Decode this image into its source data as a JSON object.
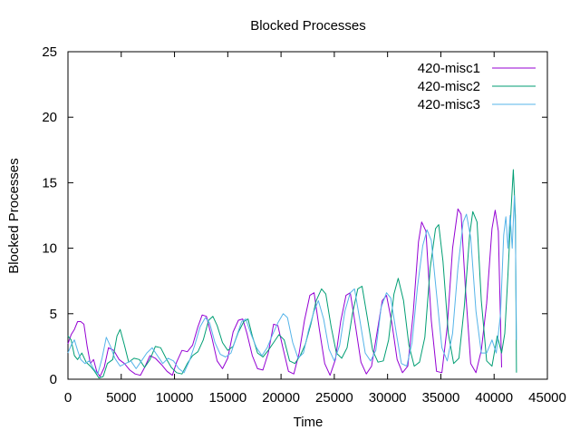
{
  "chart_data": {
    "type": "line",
    "title": "Blocked Processes",
    "xlabel": "Time",
    "ylabel": "Blocked Processes",
    "xlim": [
      0,
      45000
    ],
    "ylim": [
      0,
      25
    ],
    "xticks": [
      0,
      5000,
      10000,
      15000,
      20000,
      25000,
      30000,
      35000,
      40000,
      45000
    ],
    "yticks": [
      0,
      5,
      10,
      15,
      20,
      25
    ],
    "xtick_labels": [
      "0",
      "5000",
      "10000",
      "15000",
      "20000",
      "25000",
      "30000",
      "35000",
      "40000",
      "45000"
    ],
    "ytick_labels": [
      "0",
      "5",
      "10",
      "15",
      "20",
      "25"
    ],
    "grid": false,
    "legend_position": "top-right",
    "series": [
      {
        "name": "420-misc1",
        "color": "#9400d3",
        "points": [
          [
            0,
            2.7
          ],
          [
            300,
            3.4
          ],
          [
            600,
            3.8
          ],
          [
            900,
            4.4
          ],
          [
            1200,
            4.4
          ],
          [
            1500,
            4.2
          ],
          [
            1800,
            2.5
          ],
          [
            2100,
            1.2
          ],
          [
            2400,
            1.5
          ],
          [
            2700,
            0.6
          ],
          [
            3000,
            0.2
          ],
          [
            3400,
            0.9
          ],
          [
            3800,
            2.4
          ],
          [
            4300,
            2.2
          ],
          [
            4800,
            1.5
          ],
          [
            5300,
            1.2
          ],
          [
            5800,
            0.7
          ],
          [
            6300,
            0.4
          ],
          [
            6800,
            0.3
          ],
          [
            7200,
            0.9
          ],
          [
            7700,
            1.8
          ],
          [
            8200,
            1.6
          ],
          [
            8800,
            1.1
          ],
          [
            9300,
            0.6
          ],
          [
            9800,
            0.3
          ],
          [
            10200,
            1.3
          ],
          [
            10700,
            2.2
          ],
          [
            11200,
            2.1
          ],
          [
            11700,
            2.6
          ],
          [
            12200,
            4.0
          ],
          [
            12600,
            4.9
          ],
          [
            13000,
            4.8
          ],
          [
            13500,
            3.2
          ],
          [
            14000,
            1.4
          ],
          [
            14500,
            0.8
          ],
          [
            15000,
            1.6
          ],
          [
            15500,
            3.6
          ],
          [
            16000,
            4.5
          ],
          [
            16400,
            4.6
          ],
          [
            16800,
            3.5
          ],
          [
            17300,
            1.8
          ],
          [
            17800,
            0.8
          ],
          [
            18300,
            0.7
          ],
          [
            18800,
            2.0
          ],
          [
            19300,
            4.2
          ],
          [
            19700,
            4.1
          ],
          [
            20200,
            2.3
          ],
          [
            20700,
            0.6
          ],
          [
            21200,
            0.4
          ],
          [
            21700,
            2.0
          ],
          [
            22200,
            4.5
          ],
          [
            22700,
            6.4
          ],
          [
            23100,
            6.6
          ],
          [
            23600,
            3.8
          ],
          [
            24100,
            1.2
          ],
          [
            24600,
            0.3
          ],
          [
            25100,
            1.5
          ],
          [
            25600,
            4.4
          ],
          [
            26100,
            6.4
          ],
          [
            26500,
            6.6
          ],
          [
            27000,
            4.0
          ],
          [
            27500,
            1.3
          ],
          [
            28000,
            0.4
          ],
          [
            28500,
            1.0
          ],
          [
            29000,
            3.5
          ],
          [
            29500,
            6.0
          ],
          [
            29900,
            6.4
          ],
          [
            30400,
            4.3
          ],
          [
            30900,
            1.5
          ],
          [
            31400,
            0.5
          ],
          [
            31900,
            1.0
          ],
          [
            32400,
            5.0
          ],
          [
            32900,
            10.5
          ],
          [
            33200,
            12.0
          ],
          [
            33600,
            11.3
          ],
          [
            34100,
            4.5
          ],
          [
            34600,
            0.6
          ],
          [
            35100,
            0.5
          ],
          [
            35600,
            4.0
          ],
          [
            36100,
            10.0
          ],
          [
            36600,
            13.0
          ],
          [
            36900,
            12.6
          ],
          [
            37300,
            7.0
          ],
          [
            37800,
            1.2
          ],
          [
            38300,
            0.5
          ],
          [
            38800,
            2.2
          ],
          [
            39300,
            5.8
          ],
          [
            39800,
            11.5
          ],
          [
            40100,
            12.9
          ],
          [
            40400,
            11.3
          ],
          [
            40700,
            0.9
          ]
        ]
      },
      {
        "name": "420-misc2",
        "color": "#009e73",
        "points": [
          [
            0,
            3.3
          ],
          [
            300,
            3.0
          ],
          [
            600,
            1.8
          ],
          [
            900,
            1.5
          ],
          [
            1300,
            2.0
          ],
          [
            1700,
            1.3
          ],
          [
            2100,
            1.0
          ],
          [
            2500,
            0.6
          ],
          [
            2900,
            0.1
          ],
          [
            3300,
            0.2
          ],
          [
            3700,
            1.2
          ],
          [
            4200,
            1.5
          ],
          [
            4600,
            3.3
          ],
          [
            4900,
            3.8
          ],
          [
            5300,
            2.6
          ],
          [
            5700,
            1.3
          ],
          [
            6200,
            1.6
          ],
          [
            6700,
            1.5
          ],
          [
            7200,
            0.9
          ],
          [
            7700,
            1.5
          ],
          [
            8200,
            2.5
          ],
          [
            8700,
            2.4
          ],
          [
            9200,
            1.6
          ],
          [
            9700,
            0.9
          ],
          [
            10200,
            0.5
          ],
          [
            10700,
            0.4
          ],
          [
            11200,
            1.2
          ],
          [
            11700,
            1.8
          ],
          [
            12200,
            2.1
          ],
          [
            12700,
            3.0
          ],
          [
            13200,
            4.5
          ],
          [
            13600,
            4.8
          ],
          [
            14000,
            4.1
          ],
          [
            14500,
            2.8
          ],
          [
            15000,
            2.2
          ],
          [
            15500,
            2.5
          ],
          [
            16000,
            3.6
          ],
          [
            16500,
            4.4
          ],
          [
            16900,
            4.6
          ],
          [
            17300,
            3.3
          ],
          [
            17800,
            2.0
          ],
          [
            18300,
            1.7
          ],
          [
            18800,
            2.2
          ],
          [
            19300,
            2.8
          ],
          [
            19800,
            3.4
          ],
          [
            20300,
            3.0
          ],
          [
            20800,
            1.4
          ],
          [
            21300,
            1.2
          ],
          [
            21800,
            1.8
          ],
          [
            22300,
            2.7
          ],
          [
            22800,
            4.2
          ],
          [
            23300,
            6.0
          ],
          [
            23800,
            6.9
          ],
          [
            24200,
            6.5
          ],
          [
            24700,
            4.0
          ],
          [
            25200,
            2.0
          ],
          [
            25700,
            1.6
          ],
          [
            26200,
            2.4
          ],
          [
            26700,
            5.0
          ],
          [
            27200,
            6.9
          ],
          [
            27600,
            7.1
          ],
          [
            28100,
            4.7
          ],
          [
            28600,
            2.2
          ],
          [
            29100,
            1.3
          ],
          [
            29600,
            1.4
          ],
          [
            30100,
            3.0
          ],
          [
            30600,
            6.5
          ],
          [
            31000,
            7.7
          ],
          [
            31500,
            6.0
          ],
          [
            32000,
            2.6
          ],
          [
            32500,
            1.0
          ],
          [
            33000,
            1.3
          ],
          [
            33500,
            3.2
          ],
          [
            34000,
            8.5
          ],
          [
            34500,
            11.5
          ],
          [
            34800,
            11.8
          ],
          [
            35200,
            9.0
          ],
          [
            35700,
            3.5
          ],
          [
            36200,
            1.2
          ],
          [
            36700,
            1.6
          ],
          [
            37200,
            5.5
          ],
          [
            37700,
            11.0
          ],
          [
            38000,
            12.8
          ],
          [
            38400,
            12.0
          ],
          [
            38800,
            6.0
          ],
          [
            39300,
            1.4
          ],
          [
            39800,
            1.0
          ],
          [
            40300,
            3.3
          ],
          [
            40700,
            2.0
          ],
          [
            41000,
            3.5
          ],
          [
            41300,
            8.0
          ],
          [
            41600,
            13.0
          ],
          [
            41800,
            16.0
          ],
          [
            42000,
            12.5
          ],
          [
            42100,
            0.5
          ]
        ]
      },
      {
        "name": "420-misc3",
        "color": "#56b4e9",
        "points": [
          [
            0,
            2.0
          ],
          [
            300,
            2.6
          ],
          [
            600,
            3.0
          ],
          [
            900,
            2.2
          ],
          [
            1200,
            1.5
          ],
          [
            1600,
            1.2
          ],
          [
            2000,
            1.4
          ],
          [
            2400,
            0.8
          ],
          [
            2800,
            0.4
          ],
          [
            3200,
            1.6
          ],
          [
            3600,
            3.2
          ],
          [
            4000,
            2.5
          ],
          [
            4400,
            1.6
          ],
          [
            4900,
            1.0
          ],
          [
            5400,
            1.2
          ],
          [
            5900,
            1.4
          ],
          [
            6400,
            0.8
          ],
          [
            6900,
            1.4
          ],
          [
            7400,
            2.0
          ],
          [
            7900,
            2.4
          ],
          [
            8400,
            1.8
          ],
          [
            8900,
            1.2
          ],
          [
            9400,
            1.6
          ],
          [
            9900,
            1.4
          ],
          [
            10400,
            0.8
          ],
          [
            10900,
            0.5
          ],
          [
            11400,
            1.4
          ],
          [
            11900,
            2.6
          ],
          [
            12400,
            4.0
          ],
          [
            12900,
            4.7
          ],
          [
            13300,
            4.3
          ],
          [
            13800,
            2.8
          ],
          [
            14300,
            1.9
          ],
          [
            14800,
            1.7
          ],
          [
            15300,
            2.0
          ],
          [
            15800,
            3.2
          ],
          [
            16300,
            4.4
          ],
          [
            16700,
            4.6
          ],
          [
            17200,
            3.4
          ],
          [
            17700,
            2.4
          ],
          [
            18200,
            1.8
          ],
          [
            18700,
            2.4
          ],
          [
            19200,
            3.4
          ],
          [
            19700,
            4.3
          ],
          [
            20200,
            5.0
          ],
          [
            20600,
            4.7
          ],
          [
            21100,
            2.8
          ],
          [
            21600,
            1.6
          ],
          [
            22100,
            2.0
          ],
          [
            22600,
            3.8
          ],
          [
            23100,
            5.2
          ],
          [
            23500,
            6.0
          ],
          [
            24000,
            4.6
          ],
          [
            24500,
            2.3
          ],
          [
            25000,
            1.4
          ],
          [
            25500,
            2.6
          ],
          [
            26000,
            5.2
          ],
          [
            26500,
            6.6
          ],
          [
            26900,
            6.9
          ],
          [
            27400,
            4.5
          ],
          [
            27900,
            2.0
          ],
          [
            28400,
            1.4
          ],
          [
            28900,
            2.2
          ],
          [
            29400,
            5.5
          ],
          [
            29900,
            6.6
          ],
          [
            30300,
            6.2
          ],
          [
            30800,
            3.6
          ],
          [
            31300,
            1.2
          ],
          [
            31800,
            1.0
          ],
          [
            32300,
            2.8
          ],
          [
            32800,
            7.0
          ],
          [
            33300,
            10.2
          ],
          [
            33700,
            11.4
          ],
          [
            34100,
            10.6
          ],
          [
            34600,
            6.5
          ],
          [
            35100,
            2.4
          ],
          [
            35600,
            1.4
          ],
          [
            36100,
            3.5
          ],
          [
            36600,
            8.5
          ],
          [
            37100,
            12.0
          ],
          [
            37400,
            12.6
          ],
          [
            37800,
            10.8
          ],
          [
            38300,
            5.2
          ],
          [
            38800,
            2.0
          ],
          [
            39300,
            2.0
          ],
          [
            39800,
            3.0
          ],
          [
            40200,
            2.0
          ],
          [
            40600,
            5.0
          ],
          [
            40900,
            11.0
          ],
          [
            41100,
            12.4
          ],
          [
            41300,
            10.0
          ],
          [
            41500,
            12.5
          ],
          [
            41700,
            10.0
          ],
          [
            41900,
            14.0
          ],
          [
            42000,
            11.5
          ],
          [
            42100,
            3.0
          ]
        ]
      }
    ]
  }
}
